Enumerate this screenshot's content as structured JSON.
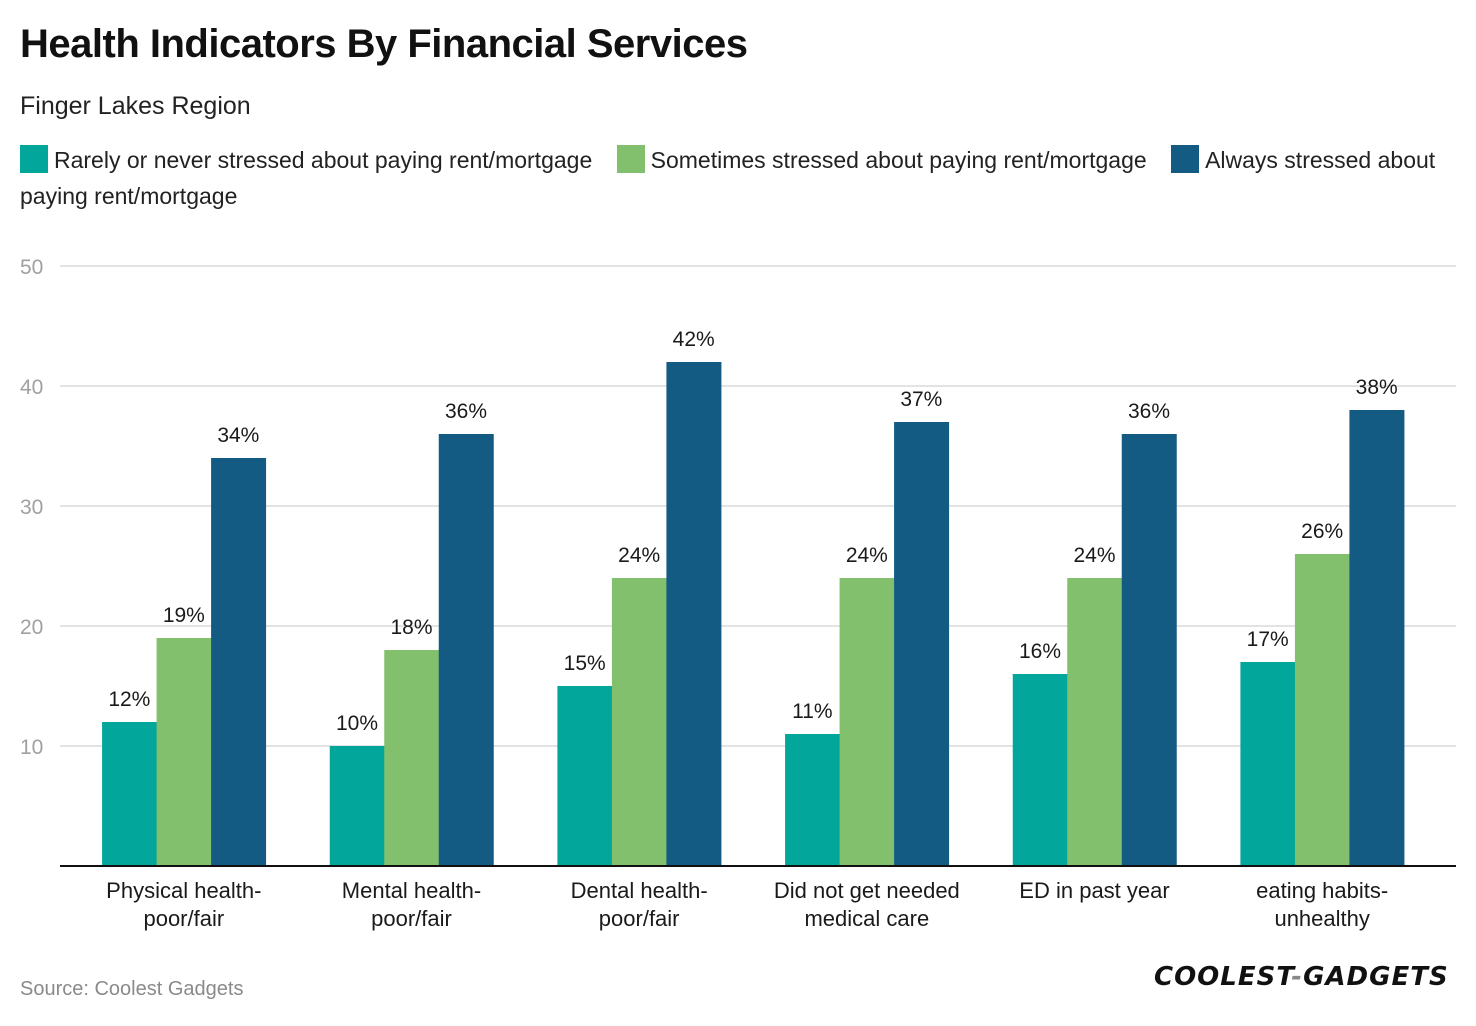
{
  "header": {
    "title": "Health Indicators By Financial Services",
    "subtitle": "Finger Lakes Region"
  },
  "footer": {
    "source": "Source: Coolest Gadgets",
    "logo_left": "COOLEST",
    "logo_dash": "-",
    "logo_right": "GADGETS"
  },
  "chart_data": {
    "type": "bar",
    "title": "Health Indicators By Financial Services",
    "subtitle": "Finger Lakes Region",
    "xlabel": "",
    "ylabel": "",
    "ylim": [
      0,
      50
    ],
    "yticks": [
      10,
      20,
      30,
      40,
      50
    ],
    "grid": true,
    "legend_position": "top",
    "value_suffix": "%",
    "categories": [
      [
        "Physical health-",
        "poor/fair"
      ],
      [
        "Mental health-",
        "poor/fair"
      ],
      [
        "Dental health-",
        "poor/fair"
      ],
      [
        "Did not get needed",
        "medical care"
      ],
      [
        "ED in past year"
      ],
      [
        "eating habits-",
        "unhealthy"
      ]
    ],
    "series": [
      {
        "name": "Rarely or never stressed about paying rent/mortgage",
        "color": "#02a69b",
        "values": [
          12,
          10,
          15,
          11,
          16,
          17
        ]
      },
      {
        "name": "Sometimes stressed about paying rent/mortgage",
        "color": "#82c06d",
        "values": [
          19,
          18,
          24,
          24,
          24,
          26
        ]
      },
      {
        "name": "Always stressed about paying rent/mortgage",
        "color": "#145b84",
        "values": [
          34,
          36,
          42,
          37,
          36,
          38
        ]
      }
    ]
  }
}
